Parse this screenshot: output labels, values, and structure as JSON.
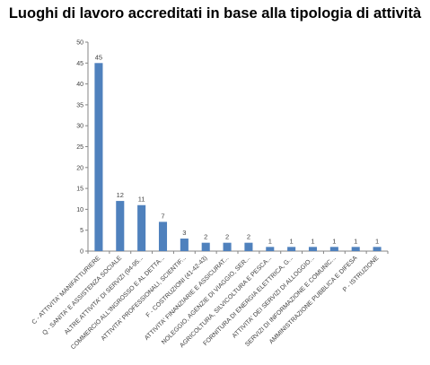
{
  "chart_data": {
    "type": "bar",
    "title": "Luoghi di lavoro accreditati in base alla tipologia di attività",
    "xlabel": "",
    "ylabel": "",
    "ylim": [
      0,
      50
    ],
    "yticks": [
      0,
      5,
      10,
      15,
      20,
      25,
      30,
      35,
      40,
      45,
      50
    ],
    "grid": false,
    "legend": "none",
    "colors": {
      "bar": "#4F81BD",
      "axis": "#868686"
    },
    "categories": [
      "C - ATTIVITA' MANIFATTURIERE",
      "Q - SANITA' E ASSISTENZA SOCIALE",
      "ALTRE ATTIVITA' DI SERVIZI (94-95...",
      "COMMERCIO ALL'INGROSSO E AL DETTA...",
      "ATTIVITA' PROFESSIONALI, SCIENTIF...",
      "F - COSTRUZIONI (41-42-43)",
      "ATTIVITA' FINANZIARIE E ASSICURAT...",
      "NOLEGGIO, AGENZIE DI VIAGGIO, SER...",
      "AGRICOLTURA, SILVICOLTURA E PESCA...",
      "FORNITURA DI ENERGIA ELETTRICA, G...",
      "ATTIVITA' DEI SERVIZI DI ALLOGGIO...",
      "SERVIZI DI INFORMAZIONE E COMUNIC...",
      "AMMINISTRAZIONE PUBBLICA E DIFESA",
      "P - ISTRUZIONE"
    ],
    "values": [
      45,
      12,
      11,
      7,
      3,
      2,
      2,
      2,
      1,
      1,
      1,
      1,
      1,
      1
    ]
  }
}
